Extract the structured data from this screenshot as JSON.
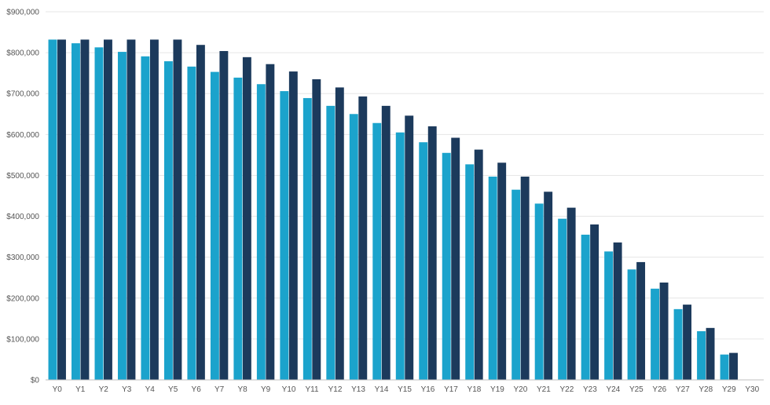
{
  "chart_data": {
    "type": "bar",
    "title": "",
    "xlabel": "",
    "ylabel": "",
    "ylim": [
      0,
      900000
    ],
    "y_ticks": [
      0,
      100000,
      200000,
      300000,
      400000,
      500000,
      600000,
      700000,
      800000,
      900000
    ],
    "y_tick_labels": [
      "$0",
      "$100,000",
      "$200,000",
      "$300,000",
      "$400,000",
      "$500,000",
      "$600,000",
      "$700,000",
      "$800,000",
      "$900,000"
    ],
    "grid": true,
    "legend": "none",
    "categories": [
      "Y0",
      "Y1",
      "Y2",
      "Y3",
      "Y4",
      "Y5",
      "Y6",
      "Y7",
      "Y8",
      "Y9",
      "Y10",
      "Y11",
      "Y12",
      "Y13",
      "Y14",
      "Y15",
      "Y16",
      "Y17",
      "Y18",
      "Y19",
      "Y20",
      "Y21",
      "Y22",
      "Y23",
      "Y24",
      "Y25",
      "Y26",
      "Y27",
      "Y28",
      "Y29",
      "Y30"
    ],
    "series": [
      {
        "color": "#1ba3cc",
        "values": [
          832000,
          823000,
          813000,
          802000,
          791000,
          779000,
          766000,
          753000,
          739000,
          723000,
          706000,
          689000,
          670000,
          650000,
          628000,
          605000,
          581000,
          555000,
          527000,
          497000,
          465000,
          431000,
          394000,
          355000,
          314000,
          270000,
          223000,
          173000,
          119000,
          62000,
          0
        ]
      },
      {
        "color": "#1c3a5c",
        "values": [
          832000,
          832000,
          832000,
          832000,
          832000,
          832000,
          819000,
          804000,
          789000,
          772000,
          754000,
          735000,
          715000,
          693000,
          670000,
          646000,
          620000,
          592000,
          563000,
          531000,
          497000,
          460000,
          421000,
          380000,
          336000,
          288000,
          238000,
          184000,
          127000,
          66000,
          0
        ]
      }
    ]
  }
}
